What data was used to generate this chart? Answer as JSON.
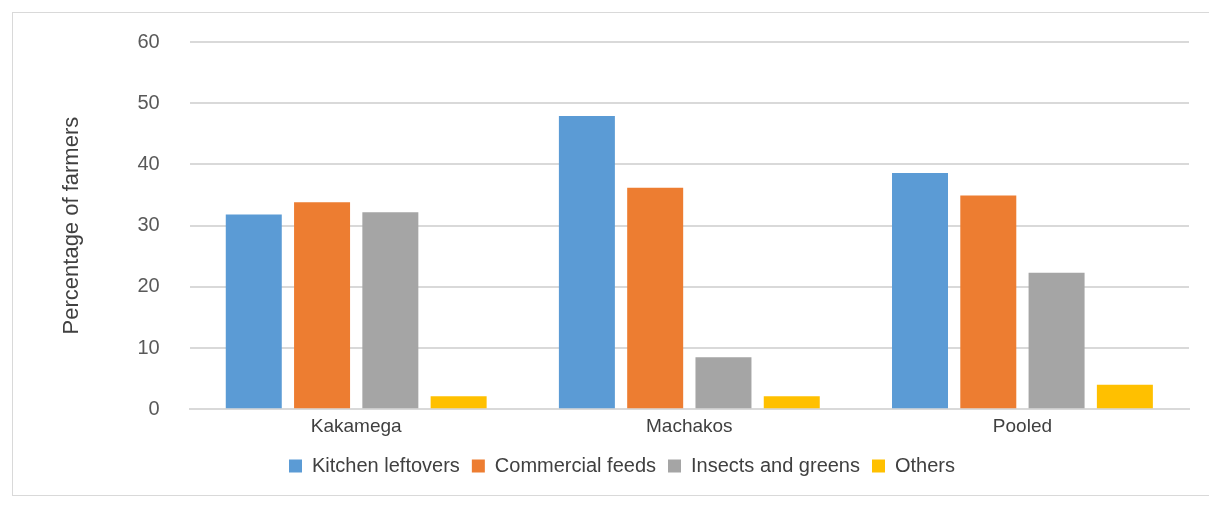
{
  "chart_data": {
    "type": "bar",
    "ylabel": "Percentage of farmers",
    "categories": [
      "Kakamega",
      "Machakos",
      "Pooled"
    ],
    "series": [
      {
        "name": "Kitchen leftovers",
        "color": "#5b9bd5",
        "values": [
          31.8,
          47.9,
          38.6
        ]
      },
      {
        "name": "Commercial feeds",
        "color": "#ed7d31",
        "values": [
          33.8,
          36.2,
          34.9
        ]
      },
      {
        "name": "Insects and greens",
        "color": "#a5a5a5",
        "values": [
          32.2,
          8.5,
          22.3
        ]
      },
      {
        "name": "Others",
        "color": "#ffc000",
        "values": [
          2.1,
          2.1,
          4.0
        ]
      }
    ],
    "ylim": [
      0,
      60
    ],
    "yticks": [
      0,
      10,
      20,
      30,
      40,
      50,
      60
    ],
    "grid": "y",
    "legend": "bottom"
  }
}
